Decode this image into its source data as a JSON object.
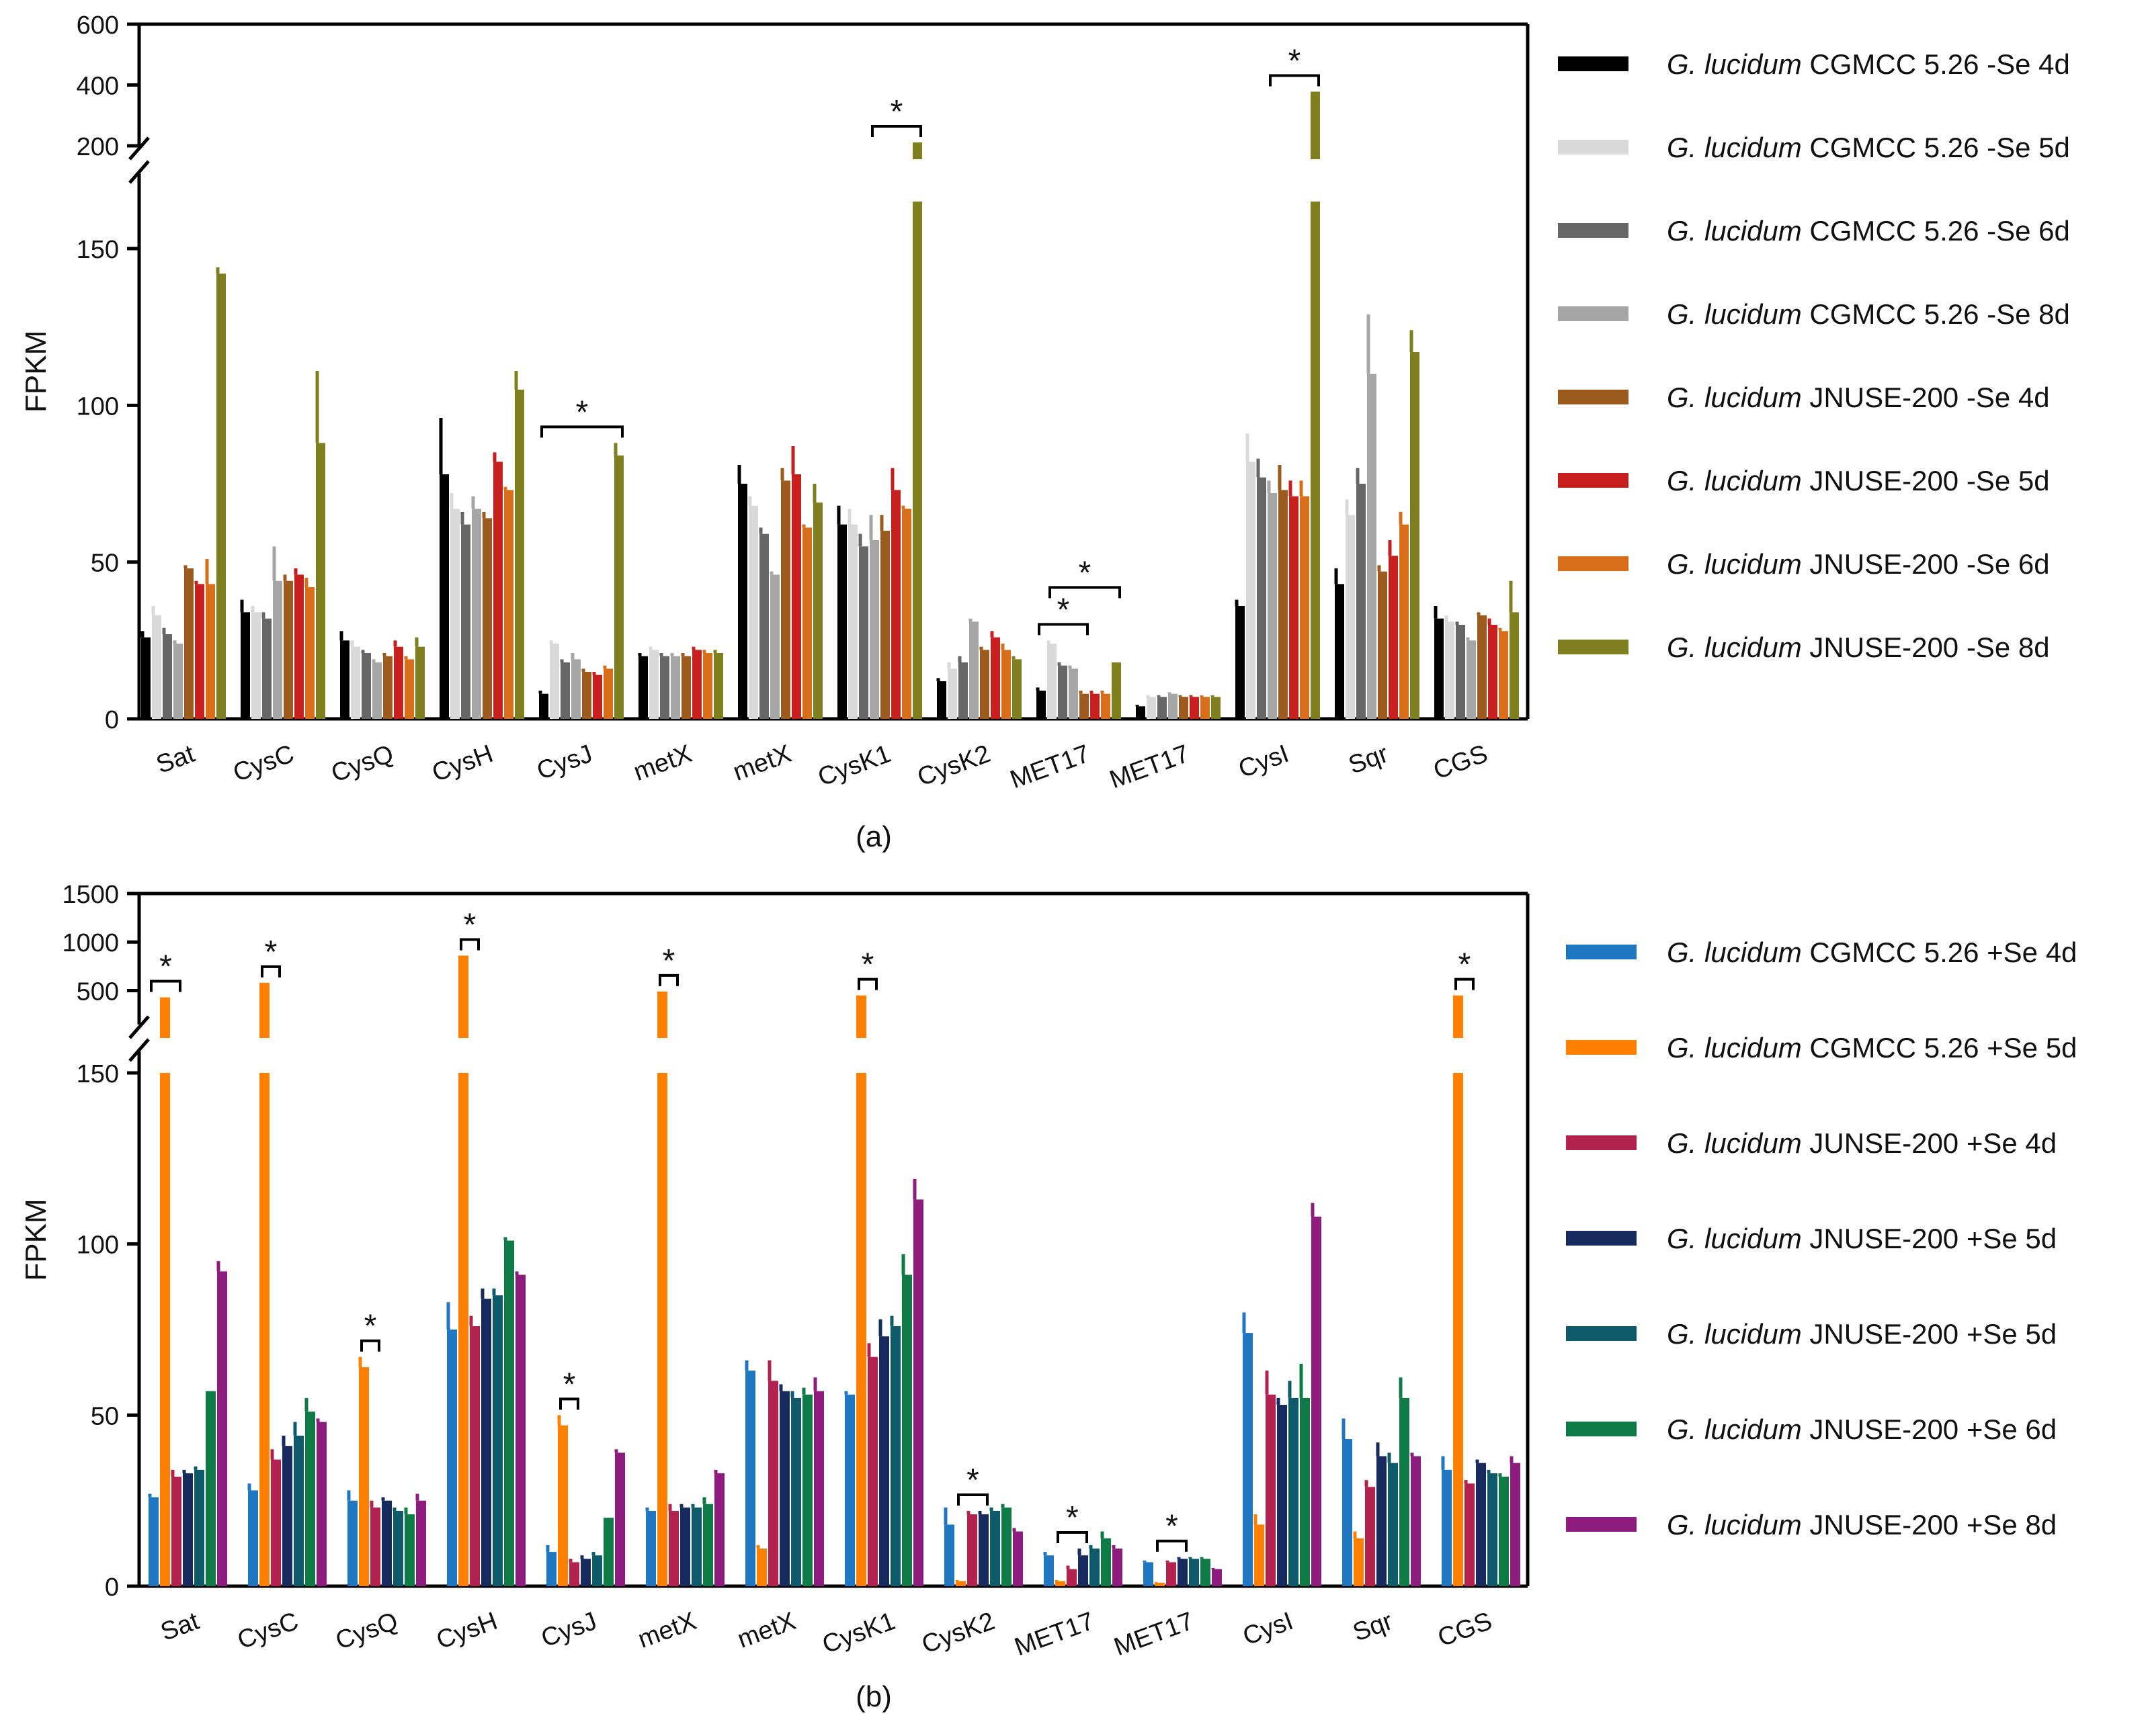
{
  "chart_data": [
    {
      "panel": "a",
      "type": "bar",
      "caption": "(a)",
      "ylabel": "FPKM",
      "categories": [
        "Sat",
        "CysC",
        "CysQ",
        "CysH",
        "CysJ",
        "metX",
        "metX",
        "CysK1",
        "CysK2",
        "MET17",
        "MET17",
        "CysI",
        "Sqr",
        "CGS"
      ],
      "axis_break": {
        "lower_range": [
          0,
          165
        ],
        "upper_range": [
          200,
          600
        ]
      },
      "lower_ticks": [
        0,
        50,
        100,
        150
      ],
      "upper_ticks": [
        200,
        400,
        600
      ],
      "legend": {
        "placement": "right"
      },
      "series": [
        {
          "label_italic": "G. lucidum",
          "label_rest": " CGMCC 5.26 -Se 4d",
          "color": "#000000",
          "values": [
            26,
            34,
            25,
            78,
            8,
            20,
            75,
            62,
            12,
            9,
            4,
            36,
            43,
            32
          ],
          "errors": [
            2,
            4,
            3,
            18,
            1,
            1,
            6,
            6,
            1,
            1,
            0.5,
            2,
            5,
            4
          ]
        },
        {
          "label_italic": "G. lucidum",
          "label_rest": " CGMCC 5.26 -Se 5d",
          "color": "#d9d9d9",
          "values": [
            33,
            34,
            23,
            67,
            24,
            22,
            68,
            62,
            16,
            24,
            7,
            82,
            65,
            31
          ],
          "errors": [
            3,
            2,
            2,
            5,
            1,
            1,
            3,
            5,
            2,
            1,
            0.5,
            9,
            5,
            2
          ]
        },
        {
          "label_italic": "G. lucidum",
          "label_rest": " CGMCC 5.26 -Se 6d",
          "color": "#666666",
          "values": [
            27,
            32,
            21,
            62,
            18,
            20,
            59,
            55,
            18,
            17,
            7,
            77,
            75,
            30
          ],
          "errors": [
            2,
            2,
            1,
            4,
            1,
            1,
            2,
            4,
            2,
            1,
            0.5,
            6,
            5,
            1
          ]
        },
        {
          "label_italic": "G. lucidum",
          "label_rest": " CGMCC 5.26 -Se 8d",
          "color": "#a6a6a6",
          "values": [
            24,
            44,
            18,
            67,
            19,
            20,
            46,
            57,
            31,
            16,
            8,
            72,
            110,
            25
          ],
          "errors": [
            1,
            11,
            1,
            4,
            2,
            1,
            1,
            8,
            1,
            1,
            0.5,
            4,
            19,
            1
          ]
        },
        {
          "label_italic": "G. lucidum",
          "label_rest": " JNUSE-200 -Se 4d",
          "color": "#9c5b1c",
          "values": [
            48,
            44,
            20,
            64,
            15,
            20,
            76,
            60,
            22,
            8,
            7,
            73,
            47,
            33
          ],
          "errors": [
            1,
            2,
            1,
            2,
            1,
            1,
            4,
            5,
            1,
            1,
            0.5,
            8,
            2,
            1
          ]
        },
        {
          "label_italic": "G. lucidum",
          "label_rest": " JNUSE-200 -Se 5d",
          "color": "#c71e1e",
          "values": [
            43,
            46,
            23,
            82,
            14,
            22,
            78,
            73,
            26,
            8,
            7,
            71,
            52,
            30
          ],
          "errors": [
            1,
            2,
            2,
            3,
            1,
            1,
            9,
            7,
            2,
            1,
            0.5,
            5,
            5,
            2
          ]
        },
        {
          "label_italic": "G. lucidum",
          "label_rest": " JNUSE-200 -Se 6d",
          "color": "#d86d1a",
          "values": [
            43,
            42,
            19,
            73,
            16,
            21,
            61,
            67,
            22,
            8,
            7,
            71,
            62,
            28
          ],
          "errors": [
            8,
            3,
            1,
            1,
            1,
            1,
            1,
            1,
            2,
            1,
            0.5,
            5,
            4,
            1
          ]
        },
        {
          "label_italic": "G. lucidum",
          "label_rest": " JNUSE-200 -Se 8d",
          "color": "#7f7f1f",
          "values": [
            142,
            88,
            23,
            105,
            84,
            21,
            69,
            211,
            19,
            18,
            7,
            378,
            117,
            34
          ],
          "errors": [
            2,
            23,
            3,
            6,
            4,
            1,
            6,
            0,
            1,
            0,
            0.5,
            0,
            7,
            10
          ]
        }
      ],
      "significance": [
        {
          "category": 4,
          "from_series": 0,
          "to_series": 7,
          "label": "*"
        },
        {
          "category": 7,
          "from_series": 3,
          "to_series": 7,
          "label": "*"
        },
        {
          "category": 9,
          "from_series": 0,
          "to_series": 4,
          "label": "*"
        },
        {
          "category": 9,
          "from_series": 1,
          "to_series": 7,
          "label": "*"
        },
        {
          "category": 11,
          "from_series": 3,
          "to_series": 7,
          "label": "*"
        }
      ]
    },
    {
      "panel": "b",
      "type": "bar",
      "caption": "(b)",
      "ylabel": "FPKM",
      "categories": [
        "Sat",
        "CysC",
        "CysQ",
        "CysH",
        "CysJ",
        "metX",
        "metX",
        "CysK1",
        "CysK2",
        "MET17",
        "MET17",
        "CysI",
        "Sqr",
        "CGS"
      ],
      "axis_break": {
        "lower_range": [
          0,
          150
        ],
        "upper_range": [
          150,
          1500
        ]
      },
      "lower_ticks": [
        0,
        50,
        100,
        150
      ],
      "upper_ticks": [
        500,
        1000,
        1500
      ],
      "legend": {
        "placement": "right"
      },
      "series": [
        {
          "label_italic": "G. lucidum",
          "label_rest": " CGMCC 5.26 +Se 4d",
          "color": "#1f77c2",
          "values": [
            26,
            28,
            25,
            75,
            10,
            22,
            63,
            56,
            18,
            9,
            7,
            74,
            43,
            34
          ],
          "errors": [
            1,
            2,
            3,
            8,
            2,
            1,
            3,
            1,
            5,
            1,
            0.5,
            6,
            6,
            4
          ]
        },
        {
          "label_italic": "G. lucidum",
          "label_rest": " CGMCC 5.26 +Se 5d",
          "color": "#ff8000",
          "values": [
            430,
            580,
            64,
            860,
            47,
            490,
            11,
            450,
            1.5,
            1.5,
            1,
            18,
            14,
            450
          ],
          "errors": [
            0,
            0,
            3,
            0,
            3,
            0,
            1,
            0,
            0.3,
            0.3,
            0.2,
            3,
            2,
            0
          ]
        },
        {
          "label_italic": "G. lucidum",
          "label_rest": " JUNSE-200 +Se 4d",
          "color": "#b3214f",
          "values": [
            32,
            37,
            23,
            76,
            7,
            22,
            60,
            67,
            21,
            5,
            7,
            56,
            29,
            30
          ],
          "errors": [
            2,
            3,
            2,
            3,
            1,
            2,
            6,
            4,
            1,
            1,
            0.5,
            7,
            2,
            1
          ]
        },
        {
          "label_italic": "G. lucidum",
          "label_rest": " JNUSE-200 +Se 5d",
          "color": "#162a5e",
          "values": [
            33,
            41,
            25,
            84,
            8,
            23,
            57,
            73,
            21,
            9,
            8,
            53,
            38,
            36
          ],
          "errors": [
            1,
            3,
            1,
            3,
            1,
            1,
            2,
            5,
            1,
            2,
            0.5,
            2,
            4,
            1
          ]
        },
        {
          "label_italic": "G. lucidum",
          "label_rest": " JNUSE-200 +Se 5d",
          "color": "#0e5a6b",
          "values": [
            34,
            44,
            22,
            85,
            9,
            23,
            55,
            76,
            22,
            11,
            8,
            55,
            36,
            33
          ],
          "errors": [
            1,
            4,
            1,
            2,
            1,
            1,
            2,
            3,
            1,
            1,
            0.5,
            5,
            3,
            1
          ]
        },
        {
          "label_italic": "G. lucidum",
          "label_rest": " JNUSE-200 +Se 6d",
          "color": "#0e7a45",
          "values": [
            57,
            51,
            21,
            101,
            20,
            24,
            56,
            91,
            23,
            14,
            8,
            55,
            55,
            32
          ],
          "errors": [
            0,
            4,
            2,
            1,
            0,
            2,
            2,
            6,
            1,
            2,
            0.5,
            10,
            6,
            1
          ]
        },
        {
          "label_italic": "G. lucidum",
          "label_rest": " JNUSE-200 +Se 8d",
          "color": "#8e1c7f",
          "values": [
            92,
            48,
            25,
            91,
            39,
            33,
            57,
            113,
            16,
            11,
            5,
            108,
            38,
            36
          ],
          "errors": [
            3,
            1,
            2,
            1,
            1,
            1,
            4,
            6,
            1,
            1,
            0.3,
            4,
            1,
            2
          ]
        }
      ],
      "significance": [
        {
          "category": 0,
          "from_series": 0,
          "to_series": 2,
          "label": "*"
        },
        {
          "category": 1,
          "from_series": 1,
          "to_series": 2,
          "label": "*"
        },
        {
          "category": 2,
          "from_series": 1,
          "to_series": 2,
          "label": "*"
        },
        {
          "category": 3,
          "from_series": 1,
          "to_series": 2,
          "label": "*"
        },
        {
          "category": 4,
          "from_series": 1,
          "to_series": 2,
          "label": "*"
        },
        {
          "category": 5,
          "from_series": 1,
          "to_series": 2,
          "label": "*"
        },
        {
          "category": 7,
          "from_series": 1,
          "to_series": 2,
          "label": "*"
        },
        {
          "category": 8,
          "from_series": 1,
          "to_series": 3,
          "label": "*"
        },
        {
          "category": 9,
          "from_series": 1,
          "to_series": 3,
          "label": "*"
        },
        {
          "category": 10,
          "from_series": 1,
          "to_series": 3,
          "label": "*"
        },
        {
          "category": 13,
          "from_series": 1,
          "to_series": 2,
          "label": "*"
        }
      ]
    }
  ]
}
